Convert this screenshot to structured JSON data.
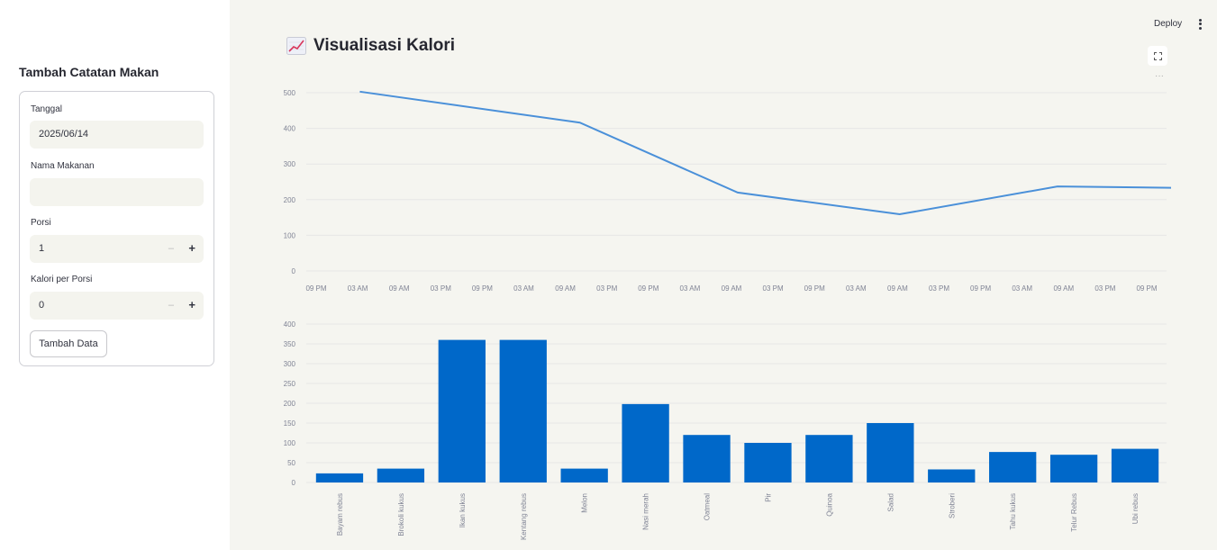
{
  "header": {
    "deploy_label": "Deploy",
    "menu_icon": "vertical-ellipsis-icon"
  },
  "sidebar": {
    "title": "Tambah Catatan Makan",
    "form": {
      "date_label": "Tanggal",
      "date_value": "2025/06/14",
      "food_label": "Nama Makanan",
      "food_value": "",
      "portion_label": "Porsi",
      "portion_value": "1",
      "calorie_label": "Kalori per Porsi",
      "calorie_value": "0",
      "minus_symbol": "–",
      "plus_symbol": "+",
      "submit_label": "Tambah Data"
    }
  },
  "main": {
    "title": "Visualisasi Kalori",
    "title_icon": "chart-increasing-icon",
    "fullscreen_icon": "fullscreen-icon",
    "more_icon": "more-horizontal-icon",
    "more_symbol": "···"
  },
  "colors": {
    "line": "#4a90d9",
    "bar": "#0068c9",
    "grid": "#e6e6e6",
    "tick_text": "#808495"
  },
  "chart_data": [
    {
      "type": "line",
      "x_ticks": [
        "09 PM",
        "03 AM",
        "09 AM",
        "03 PM",
        "09 PM",
        "03 AM",
        "09 AM",
        "03 PM",
        "09 PM",
        "03 AM",
        "09 AM",
        "03 PM",
        "09 PM",
        "03 AM",
        "09 AM",
        "03 PM",
        "09 PM",
        "03 AM",
        "09 AM",
        "03 PM",
        "09 PM"
      ],
      "y_ticks": [
        "0",
        "100",
        "200",
        "300",
        "400",
        "500"
      ],
      "ylim": [
        0,
        500
      ],
      "points": [
        {
          "t": 0.0,
          "y": 503
        },
        {
          "t": 5.3,
          "y": 416
        },
        {
          "t": 9.1,
          "y": 220
        },
        {
          "t": 13.0,
          "y": 159
        },
        {
          "t": 16.8,
          "y": 237
        },
        {
          "t": 20.4,
          "y": 232
        }
      ],
      "grid": true
    },
    {
      "type": "bar",
      "categories": [
        "Bayam rebus",
        "Brokoli kukus",
        "Ikan kukus",
        "Kentang rebus",
        "Melon",
        "Nasi merah",
        "Oatmeal",
        "Pir",
        "Quinoa",
        "Salad",
        "Stroberi",
        "Tahu kukus",
        "Telur Rebus",
        "Ubi rebus"
      ],
      "values": [
        23,
        35,
        360,
        360,
        35,
        198,
        120,
        100,
        120,
        150,
        33,
        77,
        70,
        85
      ],
      "y_ticks": [
        "0",
        "50",
        "100",
        "150",
        "200",
        "250",
        "300",
        "350",
        "400"
      ],
      "ylim": [
        0,
        400
      ],
      "grid": true
    }
  ]
}
